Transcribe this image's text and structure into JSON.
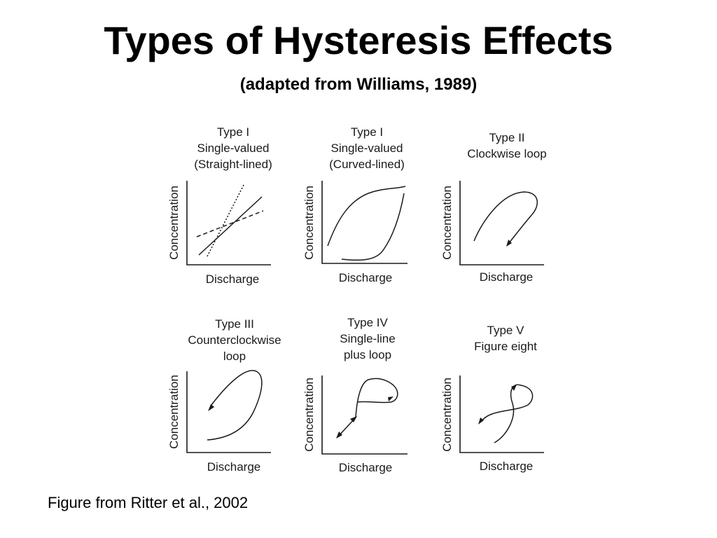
{
  "slide": {
    "title": "Types of Hysteresis Effects",
    "subtitle": "(adapted from Williams, 1989)",
    "caption": "Figure from Ritter et al., 2002"
  },
  "axes": {
    "ylabel": "Concentration",
    "xlabel": "Discharge"
  },
  "panels": [
    {
      "id": "type-i-straight",
      "title_lines": [
        "Type I",
        "Single-valued",
        "(Straight-lined)"
      ]
    },
    {
      "id": "type-i-curved",
      "title_lines": [
        "Type I",
        "Single-valued",
        "(Curved-lined)"
      ]
    },
    {
      "id": "type-ii",
      "title_lines": [
        "Type II",
        "Clockwise loop"
      ]
    },
    {
      "id": "type-iii",
      "title_lines": [
        "Type III",
        "Counterclockwise",
        "loop"
      ]
    },
    {
      "id": "type-iv",
      "title_lines": [
        "Type IV",
        "Single-line",
        "plus loop"
      ]
    },
    {
      "id": "type-v",
      "title_lines": [
        "Type V",
        "Figure eight"
      ]
    }
  ]
}
